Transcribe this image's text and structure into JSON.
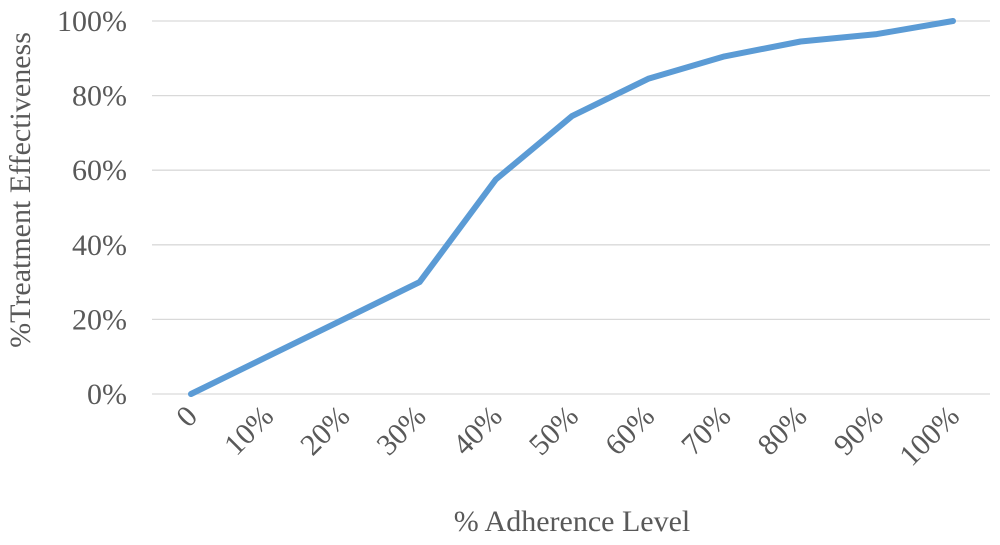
{
  "chart_data": {
    "type": "line",
    "title": "",
    "xlabel": "% Adherence Level",
    "ylabel": "%Treatment Effectiveness",
    "categories": [
      "0",
      "10%",
      "20%",
      "30%",
      "40%",
      "50%",
      "60%",
      "70%",
      "80%",
      "90%",
      "100%"
    ],
    "series": [
      {
        "name": "",
        "values": [
          0,
          10,
          20,
          30,
          57.5,
          74.5,
          84.5,
          90.5,
          94.5,
          96.5,
          100
        ],
        "color": "#5b9bd5"
      }
    ],
    "yticks": [
      "0%",
      "20%",
      "40%",
      "60%",
      "80%",
      "100%"
    ],
    "ylim": [
      0,
      100
    ],
    "grid": true,
    "legend": "none"
  }
}
